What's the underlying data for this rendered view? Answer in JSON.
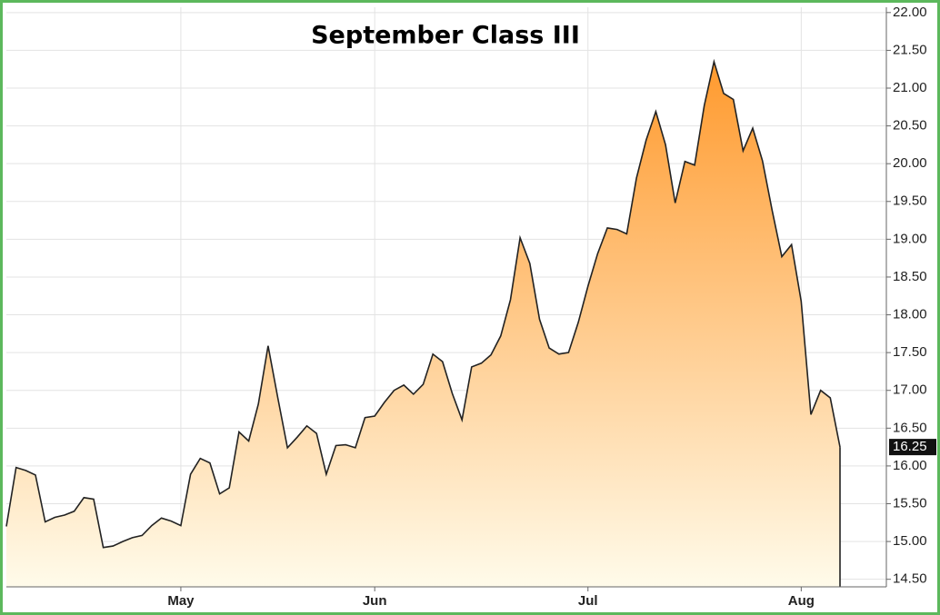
{
  "chart_data": {
    "type": "area",
    "title": "September Class III",
    "categories": [
      null,
      null,
      null,
      null,
      null,
      null,
      null,
      null,
      null,
      null,
      null,
      null,
      null,
      null,
      null,
      null,
      null,
      null,
      "May",
      null,
      null,
      null,
      null,
      null,
      null,
      null,
      null,
      null,
      null,
      null,
      null,
      null,
      null,
      null,
      null,
      null,
      null,
      null,
      "Jun",
      null,
      null,
      null,
      null,
      null,
      null,
      null,
      null,
      null,
      null,
      null,
      null,
      null,
      null,
      null,
      null,
      null,
      null,
      null,
      null,
      null,
      "Jul",
      null,
      null,
      null,
      null,
      null,
      null,
      null,
      null,
      null,
      null,
      null,
      null,
      null,
      null,
      null,
      null,
      null,
      null,
      null,
      null,
      null,
      "Aug",
      null,
      null,
      null,
      null
    ],
    "values": [
      15.2,
      15.98,
      15.94,
      15.88,
      15.26,
      15.32,
      15.35,
      15.4,
      15.58,
      15.56,
      14.92,
      14.94,
      15.0,
      15.05,
      15.08,
      15.21,
      15.31,
      15.27,
      15.21,
      15.89,
      16.1,
      16.04,
      15.63,
      15.71,
      16.45,
      16.33,
      16.82,
      17.59,
      16.9,
      16.24,
      16.38,
      16.53,
      16.43,
      15.89,
      16.27,
      16.28,
      16.24,
      16.64,
      16.66,
      16.84,
      17.0,
      17.07,
      16.95,
      17.08,
      17.48,
      17.38,
      16.96,
      16.61,
      17.31,
      17.36,
      17.47,
      17.72,
      18.2,
      19.02,
      18.68,
      17.94,
      17.56,
      17.48,
      17.5,
      17.9,
      18.38,
      18.81,
      19.15,
      19.13,
      19.07,
      19.81,
      20.31,
      20.69,
      20.25,
      19.48,
      20.03,
      19.98,
      20.77,
      21.35,
      20.93,
      20.85,
      20.17,
      20.47,
      20.04,
      19.38,
      18.77,
      18.93,
      18.18,
      16.68,
      17.0,
      16.9,
      16.25
    ],
    "color": "#222222",
    "fill_top": "#ff9a2e",
    "fill_bottom": "#fffbea",
    "ylim": [
      14.4,
      22.07
    ],
    "yticks": [
      {
        "value": 14.5,
        "label": "14.50"
      },
      {
        "value": 15,
        "label": "15.00"
      },
      {
        "value": 15.5,
        "label": "15.50"
      },
      {
        "value": 16,
        "label": "16.00"
      },
      {
        "value": 16.5,
        "label": "16.50"
      },
      {
        "value": 17,
        "label": "17.00"
      },
      {
        "value": 17.5,
        "label": "17.50"
      },
      {
        "value": 18,
        "label": "18.00"
      },
      {
        "value": 18.5,
        "label": "18.50"
      },
      {
        "value": 19,
        "label": "19.00"
      },
      {
        "value": 19.5,
        "label": "19.50"
      },
      {
        "value": 20,
        "label": "20.00"
      },
      {
        "value": 20.5,
        "label": "20.50"
      },
      {
        "value": 21,
        "label": "21.00"
      },
      {
        "value": 21.5,
        "label": "21.50"
      },
      {
        "value": 22,
        "label": "22.00"
      }
    ],
    "grid": true,
    "y_axis_side": "right",
    "show_last_value": true
  }
}
